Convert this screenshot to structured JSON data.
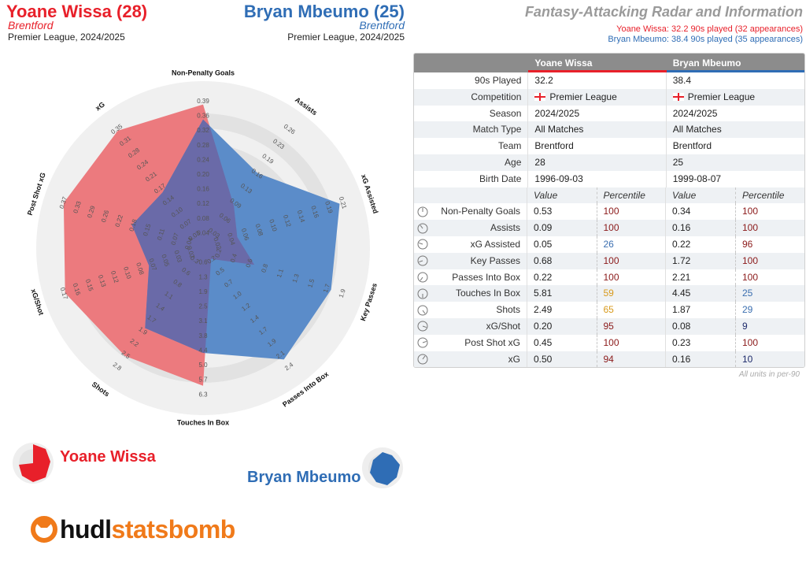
{
  "header": {
    "p1_name": "Yoane Wissa (28)",
    "p1_team": "Brentford",
    "p1_comp": "Premier League, 2024/2025",
    "p2_name": "Bryan Mbeumo (25)",
    "p2_team": "Brentford",
    "p2_comp": "Premier League, 2024/2025",
    "title": "Fantasy-Attacking Radar and Information",
    "sub1": "Yoane Wissa: 32.2 90s played (32 appearances)",
    "sub2": "Bryan Mbeumo: 38.4 90s played (35 appearances)"
  },
  "colors": {
    "p1": "#e8202a",
    "p2": "#2f6db5",
    "p1_fill": "#ec7a7e",
    "p2_fill": "#5b8cc9",
    "overlap": "#6a6aa8",
    "ring_light": "#f0f0f0",
    "ring_dark": "#e2e2e2"
  },
  "chart_data": {
    "type": "radar",
    "axes": [
      {
        "label": "Non-Penalty Goals",
        "ticks": [
          "0.04",
          "0.08",
          "0.12",
          "0.16",
          "0.20",
          "0.24",
          "0.28",
          "0.32",
          "0.36",
          "0.39"
        ]
      },
      {
        "label": "Assists",
        "ticks": [
          "0.03",
          "0.06",
          "0.09",
          "0.13",
          "0.16",
          "0.19",
          "0.23",
          "0.26"
        ]
      },
      {
        "label": "xG Assisted",
        "ticks": [
          "0.02",
          "0.04",
          "0.06",
          "0.08",
          "0.10",
          "0.12",
          "0.14",
          "0.16",
          "0.19",
          "0.21"
        ]
      },
      {
        "label": "Key Passes",
        "ticks": [
          "0.2",
          "0.4",
          "0.6",
          "0.8",
          "1.1",
          "1.3",
          "1.5",
          "1.7",
          "1.9"
        ]
      },
      {
        "label": "Passes Into Box",
        "ticks": [
          "0.2",
          "0.5",
          "0.7",
          "1.0",
          "1.2",
          "1.4",
          "1.7",
          "1.9",
          "2.1",
          "2.4"
        ]
      },
      {
        "label": "Touches In Box",
        "ticks": [
          "0.6",
          "1.3",
          "1.9",
          "2.5",
          "3.1",
          "3.8",
          "4.4",
          "5.0",
          "5.7",
          "6.3"
        ]
      },
      {
        "label": "Shots",
        "ticks": [
          "0.3",
          "0.6",
          "0.8",
          "1.1",
          "1.4",
          "1.7",
          "1.9",
          "2.2",
          "2.5",
          "2.8"
        ]
      },
      {
        "label": "xG/Shot",
        "ticks": [
          "0.02",
          "0.03",
          "0.05",
          "0.07",
          "0.08",
          "0.10",
          "0.12",
          "0.13",
          "0.15",
          "0.16",
          "0.17"
        ]
      },
      {
        "label": "Post Shot xG",
        "ticks": [
          "0.04",
          "0.07",
          "0.11",
          "0.15",
          "0.18",
          "0.22",
          "0.26",
          "0.29",
          "0.33",
          "0.37"
        ]
      },
      {
        "label": "xG",
        "ticks": [
          "0.03",
          "0.07",
          "0.10",
          "0.14",
          "0.17",
          "0.21",
          "0.24",
          "0.28",
          "0.31",
          "0.35"
        ]
      }
    ],
    "series": [
      {
        "name": "Yoane Wissa",
        "values": [
          0.96,
          0.35,
          0.24,
          0.36,
          0.09,
          0.92,
          0.89,
          0.97,
          0.98,
          0.97
        ]
      },
      {
        "name": "Bryan Mbeumo",
        "values": [
          0.86,
          0.62,
          0.96,
          0.9,
          0.92,
          0.7,
          0.66,
          0.38,
          0.5,
          0.46
        ]
      }
    ]
  },
  "table": {
    "col1": "Yoane Wissa",
    "col2": "Bryan Mbeumo",
    "info_rows": [
      {
        "label": "90s Played",
        "v1": "32.2",
        "v2": "38.4",
        "flag": false
      },
      {
        "label": "Competition",
        "v1": "Premier League",
        "v2": "Premier League",
        "flag": true
      },
      {
        "label": "Season",
        "v1": "2024/2025",
        "v2": "2024/2025",
        "flag": false
      },
      {
        "label": "Match Type",
        "v1": "All Matches",
        "v2": "All Matches",
        "flag": false
      },
      {
        "label": "Team",
        "v1": "Brentford",
        "v2": "Brentford",
        "flag": false
      },
      {
        "label": "Age",
        "v1": "28",
        "v2": "25",
        "flag": false
      },
      {
        "label": "Birth Date",
        "v1": "1996-09-03",
        "v2": "1999-08-07",
        "flag": false
      }
    ],
    "sub_value": "Value",
    "sub_percentile": "Percentile",
    "stat_rows": [
      {
        "label": "Non-Penalty Goals",
        "v1": "0.53",
        "p1": "100",
        "p1c": "#8b1a1a",
        "v2": "0.34",
        "p2": "100",
        "p2c": "#8b1a1a",
        "pct": 1.0
      },
      {
        "label": "Assists",
        "v1": "0.09",
        "p1": "100",
        "p1c": "#8b1a1a",
        "v2": "0.16",
        "p2": "100",
        "p2c": "#8b1a1a",
        "pct": 0.9
      },
      {
        "label": "xG Assisted",
        "v1": "0.05",
        "p1": "26",
        "p1c": "#3b6fb0",
        "v2": "0.22",
        "p2": "96",
        "p2c": "#8b1a1a",
        "pct": 0.8
      },
      {
        "label": "Key Passes",
        "v1": "0.68",
        "p1": "100",
        "p1c": "#8b1a1a",
        "v2": "1.72",
        "p2": "100",
        "p2c": "#8b1a1a",
        "pct": 0.7
      },
      {
        "label": "Passes Into Box",
        "v1": "0.22",
        "p1": "100",
        "p1c": "#8b1a1a",
        "v2": "2.21",
        "p2": "100",
        "p2c": "#8b1a1a",
        "pct": 0.6
      },
      {
        "label": "Touches In Box",
        "v1": "5.81",
        "p1": "59",
        "p1c": "#d89a1c",
        "v2": "4.45",
        "p2": "25",
        "p2c": "#3b6fb0",
        "pct": 0.5
      },
      {
        "label": "Shots",
        "v1": "2.49",
        "p1": "65",
        "p1c": "#d89a1c",
        "v2": "1.87",
        "p2": "29",
        "p2c": "#3b6fb0",
        "pct": 0.4
      },
      {
        "label": "xG/Shot",
        "v1": "0.20",
        "p1": "95",
        "p1c": "#8b1a1a",
        "v2": "0.08",
        "p2": "9",
        "p2c": "#1d2a6b",
        "pct": 0.3
      },
      {
        "label": "Post Shot xG",
        "v1": "0.45",
        "p1": "100",
        "p1c": "#8b1a1a",
        "v2": "0.23",
        "p2": "100",
        "p2c": "#8b1a1a",
        "pct": 0.2
      },
      {
        "label": "xG",
        "v1": "0.50",
        "p1": "94",
        "p1c": "#8b1a1a",
        "v2": "0.16",
        "p2": "10",
        "p2c": "#1d2a6b",
        "pct": 0.1
      }
    ],
    "units_note": "All units in per-90"
  },
  "legend": {
    "p1": "Yoane Wissa",
    "p2": "Bryan Mbeumo"
  },
  "logo": {
    "part1": "hudl",
    "part2": "statsbomb"
  }
}
